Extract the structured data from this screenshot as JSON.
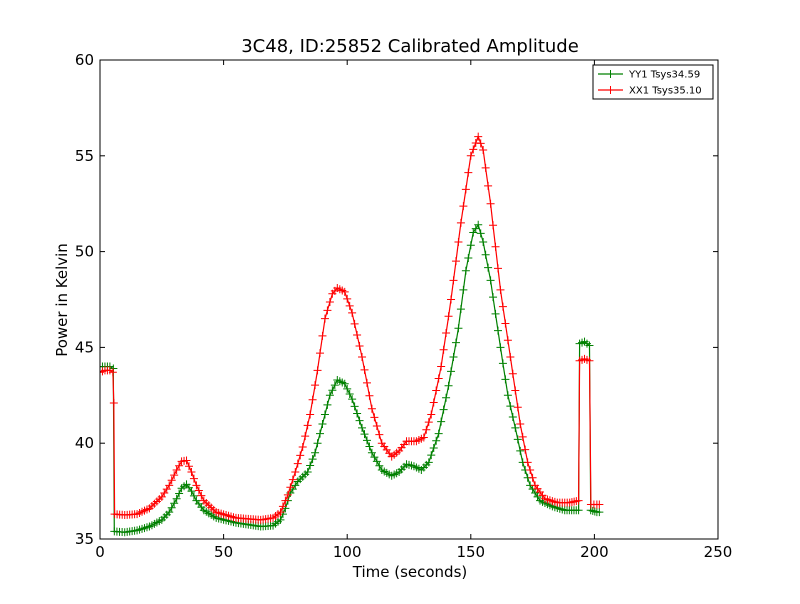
{
  "chart_data": {
    "type": "line",
    "title": "3C48, ID:25852 Calibrated Amplitude",
    "xlabel": "Time (seconds)",
    "ylabel": "Power in Kelvin",
    "xlim": [
      0,
      250
    ],
    "ylim": [
      35,
      60
    ],
    "xticks": [
      0,
      50,
      100,
      150,
      200,
      250
    ],
    "yticks": [
      35,
      40,
      45,
      50,
      55,
      60
    ],
    "grid": false,
    "legend_position": "top-right",
    "marker": "+",
    "series": [
      {
        "name": "YY1 Tsys34.59",
        "color": "#008000",
        "points": [
          [
            0,
            44.0
          ],
          [
            2,
            44.0
          ],
          [
            4,
            44.0
          ],
          [
            5.4,
            43.9
          ],
          [
            5.8,
            35.4
          ],
          [
            10,
            35.35
          ],
          [
            15,
            35.45
          ],
          [
            20,
            35.65
          ],
          [
            25,
            36.0
          ],
          [
            28,
            36.4
          ],
          [
            31,
            37.1
          ],
          [
            33,
            37.65
          ],
          [
            35,
            37.85
          ],
          [
            37,
            37.5
          ],
          [
            39,
            37.0
          ],
          [
            42,
            36.5
          ],
          [
            47,
            36.1
          ],
          [
            55,
            35.85
          ],
          [
            65,
            35.65
          ],
          [
            70,
            35.7
          ],
          [
            73,
            36.0
          ],
          [
            75,
            36.6
          ],
          [
            77,
            37.4
          ],
          [
            80,
            38.0
          ],
          [
            84,
            38.5
          ],
          [
            87,
            39.5
          ],
          [
            90,
            41.0
          ],
          [
            93,
            42.5
          ],
          [
            96,
            43.3
          ],
          [
            99,
            43.1
          ],
          [
            102,
            42.3
          ],
          [
            106,
            40.8
          ],
          [
            110,
            39.5
          ],
          [
            114,
            38.6
          ],
          [
            118,
            38.3
          ],
          [
            121,
            38.5
          ],
          [
            124,
            38.9
          ],
          [
            127,
            38.8
          ],
          [
            130,
            38.6
          ],
          [
            133,
            39.0
          ],
          [
            137,
            40.5
          ],
          [
            141,
            43.0
          ],
          [
            145,
            46.0
          ],
          [
            148,
            49.0
          ],
          [
            151,
            51.0
          ],
          [
            153,
            51.4
          ],
          [
            155,
            50.5
          ],
          [
            158,
            48.5
          ],
          [
            162,
            45.0
          ],
          [
            165,
            42.5
          ],
          [
            168,
            40.8
          ],
          [
            171,
            39.0
          ],
          [
            174,
            37.8
          ],
          [
            178,
            37.0
          ],
          [
            183,
            36.7
          ],
          [
            188,
            36.5
          ],
          [
            193.6,
            36.5
          ],
          [
            194,
            45.2
          ],
          [
            196,
            45.3
          ],
          [
            198,
            45.1
          ],
          [
            198.5,
            36.5
          ],
          [
            201,
            36.4
          ],
          [
            202,
            36.4
          ]
        ]
      },
      {
        "name": "XX1 Tsys35.10",
        "color": "#ff0000",
        "points": [
          [
            0,
            43.7
          ],
          [
            2,
            43.8
          ],
          [
            4,
            43.8
          ],
          [
            5.2,
            43.7
          ],
          [
            5.6,
            42.1
          ],
          [
            5.9,
            36.3
          ],
          [
            10,
            36.25
          ],
          [
            15,
            36.3
          ],
          [
            20,
            36.6
          ],
          [
            25,
            37.2
          ],
          [
            28,
            37.8
          ],
          [
            31,
            38.6
          ],
          [
            33,
            39.05
          ],
          [
            35,
            39.1
          ],
          [
            37,
            38.5
          ],
          [
            39,
            37.8
          ],
          [
            42,
            37.0
          ],
          [
            47,
            36.4
          ],
          [
            55,
            36.1
          ],
          [
            65,
            36.0
          ],
          [
            70,
            36.1
          ],
          [
            73,
            36.4
          ],
          [
            76,
            37.3
          ],
          [
            79,
            38.5
          ],
          [
            82,
            39.8
          ],
          [
            85,
            41.5
          ],
          [
            88,
            43.8
          ],
          [
            91,
            46.5
          ],
          [
            94,
            47.8
          ],
          [
            96,
            48.1
          ],
          [
            99,
            47.9
          ],
          [
            102,
            46.8
          ],
          [
            106,
            44.5
          ],
          [
            110,
            41.8
          ],
          [
            114,
            40.0
          ],
          [
            118,
            39.3
          ],
          [
            121,
            39.6
          ],
          [
            124,
            40.1
          ],
          [
            128,
            40.1
          ],
          [
            131,
            40.3
          ],
          [
            134,
            41.5
          ],
          [
            138,
            44.0
          ],
          [
            142,
            47.5
          ],
          [
            146,
            51.5
          ],
          [
            150,
            55.0
          ],
          [
            153,
            56.0
          ],
          [
            155,
            55.3
          ],
          [
            158,
            52.5
          ],
          [
            162,
            48.0
          ],
          [
            166,
            44.5
          ],
          [
            170,
            41.0
          ],
          [
            173,
            39.0
          ],
          [
            176,
            37.8
          ],
          [
            180,
            37.1
          ],
          [
            185,
            36.9
          ],
          [
            190,
            36.9
          ],
          [
            193.6,
            37.0
          ],
          [
            194,
            44.3
          ],
          [
            196,
            44.4
          ],
          [
            198,
            44.3
          ],
          [
            198.6,
            36.8
          ],
          [
            201,
            36.8
          ],
          [
            202,
            36.8
          ]
        ]
      }
    ]
  }
}
